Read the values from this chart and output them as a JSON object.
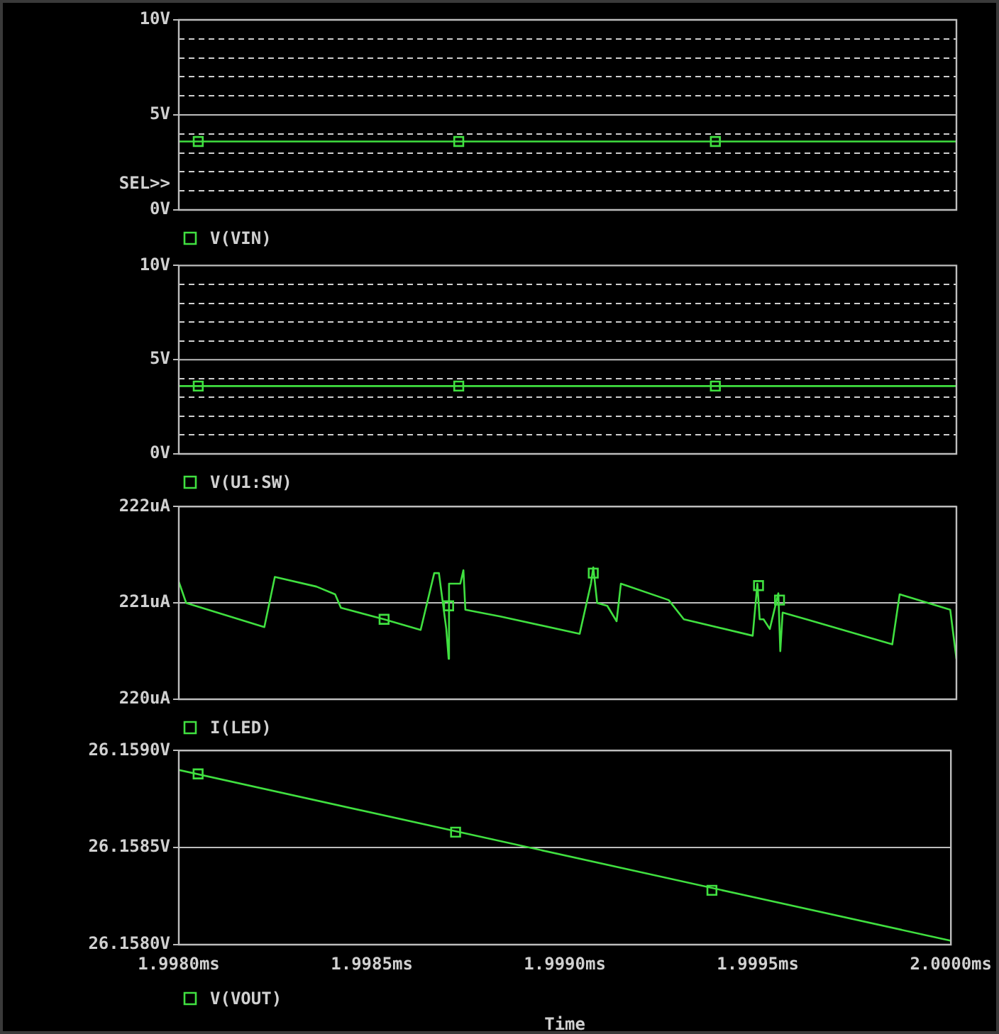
{
  "chart_data": [
    {
      "type": "line",
      "xlim": [
        1.998,
        2.0
      ],
      "ylim": [
        0,
        10
      ],
      "yticks": [
        {
          "value": 0,
          "label": "0V"
        },
        {
          "value": 1,
          "label": null
        },
        {
          "value": 2,
          "label": null
        },
        {
          "value": 3,
          "label": null
        },
        {
          "value": 4,
          "label": null
        },
        {
          "value": 5,
          "label": "5V"
        },
        {
          "value": 6,
          "label": null
        },
        {
          "value": 7,
          "label": null
        },
        {
          "value": 8,
          "label": null
        },
        {
          "value": 9,
          "label": null
        },
        {
          "value": 10,
          "label": "10V"
        }
      ],
      "grid": "y",
      "ref_lines": [
        {
          "axis": "y",
          "value": 5,
          "color": "#bdbdbd",
          "line_style": "solid"
        }
      ],
      "legend": "bottom left",
      "tick_labels": "y",
      "annotations": [
        "SEL>>"
      ],
      "series": [
        {
          "name": "V(VIN)",
          "color": "#40e040",
          "marker": "none",
          "x": [
            1.998,
            2.0
          ],
          "values": [
            3.6,
            3.6
          ]
        },
        {
          "type": "scatter",
          "color": "#40e040",
          "marker": "square",
          "x": [
            1.99805,
            1.99872,
            1.99938
          ],
          "values": [
            3.6,
            3.6,
            3.6
          ]
        }
      ]
    },
    {
      "type": "line",
      "xlim": [
        1.998,
        2.0
      ],
      "ylim": [
        0,
        10
      ],
      "yticks": [
        {
          "value": 0,
          "label": "0V"
        },
        {
          "value": 1,
          "label": null
        },
        {
          "value": 2,
          "label": null
        },
        {
          "value": 3,
          "label": null
        },
        {
          "value": 4,
          "label": null
        },
        {
          "value": 5,
          "label": "5V"
        },
        {
          "value": 6,
          "label": null
        },
        {
          "value": 7,
          "label": null
        },
        {
          "value": 8,
          "label": null
        },
        {
          "value": 9,
          "label": null
        },
        {
          "value": 10,
          "label": "10V"
        }
      ],
      "grid": "y",
      "ref_lines": [
        {
          "axis": "y",
          "value": 5,
          "color": "#bdbdbd",
          "line_style": "solid"
        }
      ],
      "legend": "bottom left",
      "tick_labels": "y",
      "series": [
        {
          "name": "V(U1:SW)",
          "color": "#40e040",
          "marker": "none",
          "x": [
            1.998,
            2.0
          ],
          "values": [
            3.6,
            3.6
          ]
        },
        {
          "type": "scatter",
          "color": "#40e040",
          "marker": "square",
          "x": [
            1.99805,
            1.99872,
            1.99938
          ],
          "values": [
            3.6,
            3.6,
            3.6
          ]
        }
      ]
    },
    {
      "type": "line",
      "xlim": [
        1.998,
        2.0
      ],
      "ylim": [
        220,
        222
      ],
      "yticks": [
        {
          "value": 220,
          "label": "220uA"
        },
        {
          "value": 221,
          "label": "221uA"
        },
        {
          "value": 222,
          "label": "222uA"
        }
      ],
      "grid": "y",
      "legend": "bottom left",
      "tick_labels": "y",
      "series": [
        {
          "name": "I(LED)",
          "color": "#40e040",
          "marker": "none",
          "x": [
            1.998,
            1.998019,
            1.99822,
            1.998247,
            1.998354,
            1.998402,
            1.998417,
            1.998528,
            1.998622,
            1.998657,
            1.998669,
            1.998688,
            1.998694,
            1.998695,
            1.998724,
            1.998732,
            1.998737,
            1.998827,
            1.999031,
            1.99906,
            1.999066,
            1.999076,
            1.999102,
            1.999126,
            1.999137,
            1.99926,
            1.999299,
            1.999476,
            1.999488,
            1.999494,
            1.999504,
            1.99952,
            1.999542,
            1.999547,
            1.999553,
            1.999614,
            1.999835,
            1.999854,
            1.999984,
            2.0
          ],
          "values": [
            221.22,
            221.0,
            220.75,
            221.27,
            221.17,
            221.09,
            220.95,
            220.83,
            220.72,
            221.31,
            221.31,
            220.73,
            220.42,
            221.2,
            221.2,
            221.34,
            220.93,
            220.86,
            220.68,
            221.2,
            221.37,
            221.0,
            220.97,
            220.81,
            221.2,
            221.03,
            220.83,
            220.66,
            221.2,
            220.83,
            220.83,
            220.73,
            221.1,
            220.5,
            220.9,
            220.83,
            220.57,
            221.09,
            220.93,
            220.42
          ]
        },
        {
          "type": "scatter",
          "color": "#40e040",
          "marker": "square",
          "x": [
            1.998528,
            1.998694,
            1.999066,
            1.999491,
            1.999545
          ],
          "values": [
            220.83,
            220.97,
            221.31,
            221.18,
            221.03
          ]
        }
      ]
    },
    {
      "type": "line",
      "xlabel": "Time",
      "xlim": [
        1.998,
        2.0
      ],
      "xticks": [
        {
          "value": 1.998,
          "label": "1.9980ms"
        },
        {
          "value": 1.9985,
          "label": "1.9985ms"
        },
        {
          "value": 1.999,
          "label": "1.9990ms"
        },
        {
          "value": 1.9995,
          "label": "1.9995ms"
        },
        {
          "value": 2.0,
          "label": "2.0000ms"
        }
      ],
      "ylim": [
        26.158,
        26.159
      ],
      "yticks": [
        {
          "value": 26.158,
          "label": "26.1580V"
        },
        {
          "value": 26.1585,
          "label": "26.1585V"
        },
        {
          "value": 26.159,
          "label": "26.1590V"
        }
      ],
      "grid": "y",
      "legend": "bottom left",
      "series": [
        {
          "name": "V(VOUT)",
          "color": "#40e040",
          "marker": "none",
          "x": [
            1.998,
            2.0
          ],
          "values": [
            26.1589,
            26.15802
          ]
        },
        {
          "type": "scatter",
          "color": "#40e040",
          "marker": "square",
          "x": [
            1.99805,
            1.998717,
            1.999381
          ],
          "values": [
            26.15888,
            26.15858,
            26.15828
          ]
        }
      ]
    }
  ]
}
